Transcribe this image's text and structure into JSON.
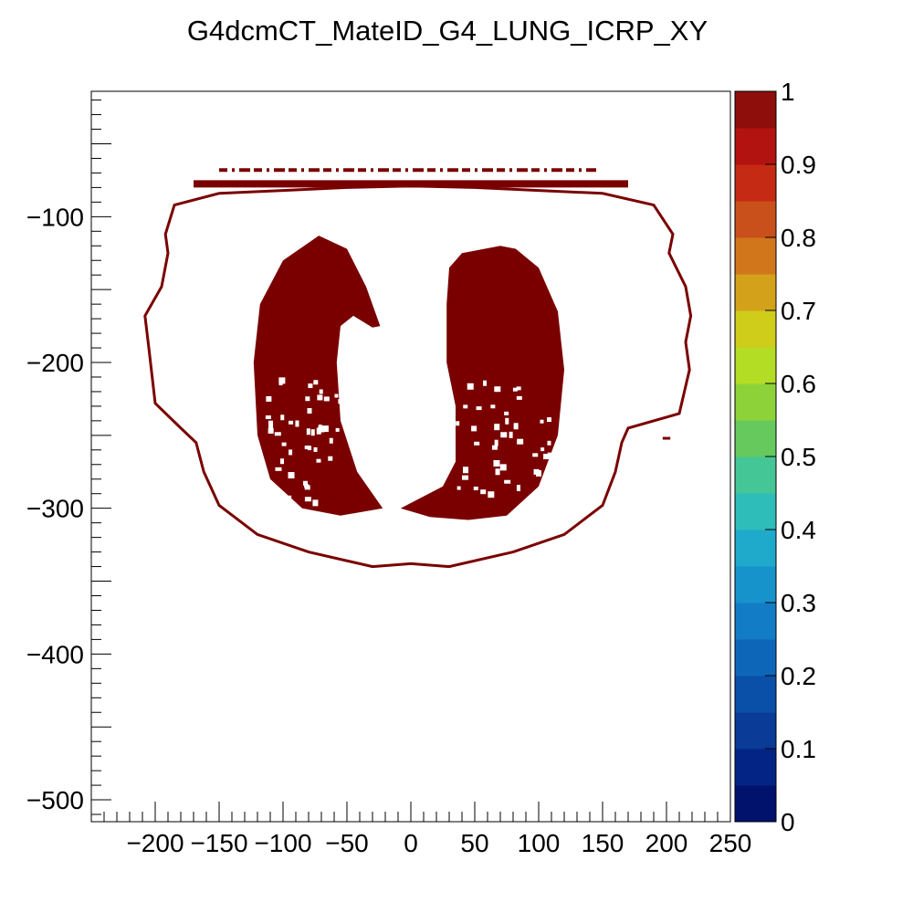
{
  "chart_data": {
    "type": "heatmap",
    "title": "G4dcmCT_MateID_G4_LUNG_ICRP_XY",
    "xlabel": "",
    "ylabel": "",
    "xlim": [
      -250,
      250
    ],
    "ylim": [
      -515,
      -14
    ],
    "x_ticks": [
      -200,
      -150,
      -100,
      -50,
      0,
      50,
      100,
      150,
      200,
      250
    ],
    "x_tick_labels": [
      "−200",
      "−150",
      "−100",
      "−50",
      "0",
      "50",
      "100",
      "150",
      "200",
      "250"
    ],
    "y_ticks": [
      -100,
      -200,
      -300,
      -400,
      -500
    ],
    "y_tick_labels": [
      "−100",
      "−200",
      "−300",
      "−400",
      "−500"
    ],
    "z_range": [
      0,
      1
    ],
    "z_ticks": [
      0,
      0.1,
      0.2,
      0.3,
      0.4,
      0.5,
      0.6,
      0.7,
      0.8,
      0.9,
      1
    ],
    "z_tick_labels": [
      "0",
      "0.1",
      "0.2",
      "0.3",
      "0.4",
      "0.5",
      "0.6",
      "0.7",
      "0.8",
      "0.9",
      "1"
    ],
    "palette": [
      "#00126b",
      "#032485",
      "#093b97",
      "#0a50a8",
      "#0e66b8",
      "#127dc6",
      "#1793cc",
      "#1fa9cb",
      "#2ebdb8",
      "#45c696",
      "#65c95e",
      "#8ed23a",
      "#b3dd24",
      "#cfcc1a",
      "#d3a21a",
      "#d1761b",
      "#c9501a",
      "#c52a14",
      "#b21310",
      "#8e0e0b",
      "#6e0000"
    ],
    "fill_value": 1,
    "fill_color": "#7a0000",
    "regions": {
      "body_outline": [
        [
          -185,
          -92
        ],
        [
          -150,
          -84
        ],
        [
          -100,
          -82
        ],
        [
          -50,
          -80
        ],
        [
          0,
          -79
        ],
        [
          50,
          -80
        ],
        [
          100,
          -82
        ],
        [
          150,
          -84
        ],
        [
          190,
          -92
        ],
        [
          205,
          -112
        ],
        [
          202,
          -125
        ],
        [
          215,
          -148
        ],
        [
          219,
          -168
        ],
        [
          215,
          -186
        ],
        [
          218,
          -205
        ],
        [
          210,
          -235
        ],
        [
          170,
          -245
        ],
        [
          165,
          -255
        ],
        [
          160,
          -275
        ],
        [
          150,
          -298
        ],
        [
          120,
          -318
        ],
        [
          80,
          -330
        ],
        [
          30,
          -340
        ],
        [
          0,
          -338
        ],
        [
          -30,
          -340
        ],
        [
          -80,
          -330
        ],
        [
          -120,
          -318
        ],
        [
          -150,
          -298
        ],
        [
          -162,
          -275
        ],
        [
          -168,
          -255
        ],
        [
          -180,
          -245
        ],
        [
          -200,
          -228
        ],
        [
          -205,
          -190
        ],
        [
          -208,
          -168
        ],
        [
          -195,
          -148
        ],
        [
          -190,
          -125
        ],
        [
          -192,
          -112
        ]
      ],
      "left_lung": [
        [
          -72,
          -113
        ],
        [
          -50,
          -122
        ],
        [
          -35,
          -148
        ],
        [
          -24,
          -175
        ],
        [
          -30,
          -176
        ],
        [
          -45,
          -168
        ],
        [
          -55,
          -175
        ],
        [
          -58,
          -200
        ],
        [
          -55,
          -240
        ],
        [
          -42,
          -275
        ],
        [
          -22,
          -300
        ],
        [
          -55,
          -305
        ],
        [
          -85,
          -300
        ],
        [
          -110,
          -280
        ],
        [
          -120,
          -250
        ],
        [
          -123,
          -200
        ],
        [
          -118,
          -160
        ],
        [
          -100,
          -130
        ]
      ],
      "right_lung": [
        [
          70,
          -120
        ],
        [
          82,
          -122
        ],
        [
          100,
          -135
        ],
        [
          115,
          -165
        ],
        [
          120,
          -205
        ],
        [
          115,
          -250
        ],
        [
          100,
          -285
        ],
        [
          75,
          -305
        ],
        [
          45,
          -308
        ],
        [
          15,
          -306
        ],
        [
          -8,
          -300
        ],
        [
          25,
          -285
        ],
        [
          35,
          -268
        ],
        [
          35,
          -245
        ],
        [
          35,
          -230
        ],
        [
          28,
          -200
        ],
        [
          28,
          -160
        ],
        [
          30,
          -135
        ],
        [
          40,
          -125
        ]
      ],
      "table_bar": [
        [
          -170,
          -80
        ],
        [
          170,
          -80
        ],
        [
          170,
          -75
        ],
        [
          -170,
          -75
        ]
      ],
      "dashed_line_y": -68,
      "dashed_line_x": [
        -150,
        145
      ],
      "speckles_count": 90,
      "stray_mark": [
        [
          197,
          -252
        ],
        [
          203,
          -252
        ]
      ]
    }
  }
}
